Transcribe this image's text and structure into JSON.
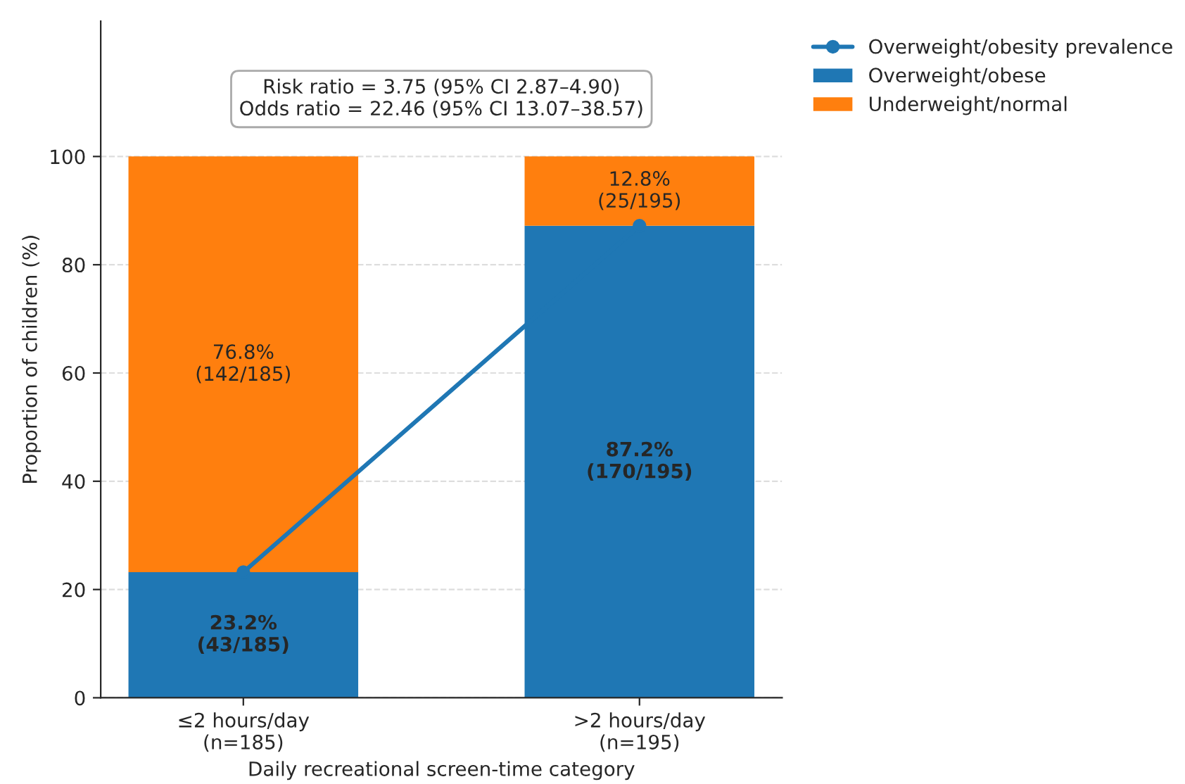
{
  "chart_data": {
    "type": "bar",
    "stacked": true,
    "xlabel": "Daily recreational screen-time category",
    "ylabel": "Proportion of children (%)",
    "categories": [
      "≤2 hours/day\n(n=185)",
      ">2 hours/day\n(n=195)"
    ],
    "series": [
      {
        "name": "Overweight/obesity prevalence",
        "type": "line",
        "color": "#1f77b4",
        "values": [
          23.2,
          87.2
        ],
        "marker": "circle",
        "line_style": "solid"
      },
      {
        "name": "Overweight/obese",
        "color": "#1f77b4",
        "values": [
          23.2,
          87.2
        ],
        "value_labels": [
          "23.2%\n(43/185)",
          "87.2%\n(170/195)"
        ]
      },
      {
        "name": "Underweight/normal",
        "color": "#ff7f0e",
        "values": [
          76.8,
          12.8
        ],
        "value_labels": [
          "76.8%\n(142/185)",
          "12.8%\n(25/195)"
        ]
      }
    ],
    "ylim": [
      0,
      125
    ],
    "yticks": [
      0,
      20,
      40,
      60,
      80,
      100
    ],
    "grid": "y",
    "legend": "top right",
    "annotations": [
      "Risk ratio = 3.75 (95% CI 2.87–4.90)\nOdds ratio = 22.46 (95% CI 13.07–38.57)"
    ]
  }
}
